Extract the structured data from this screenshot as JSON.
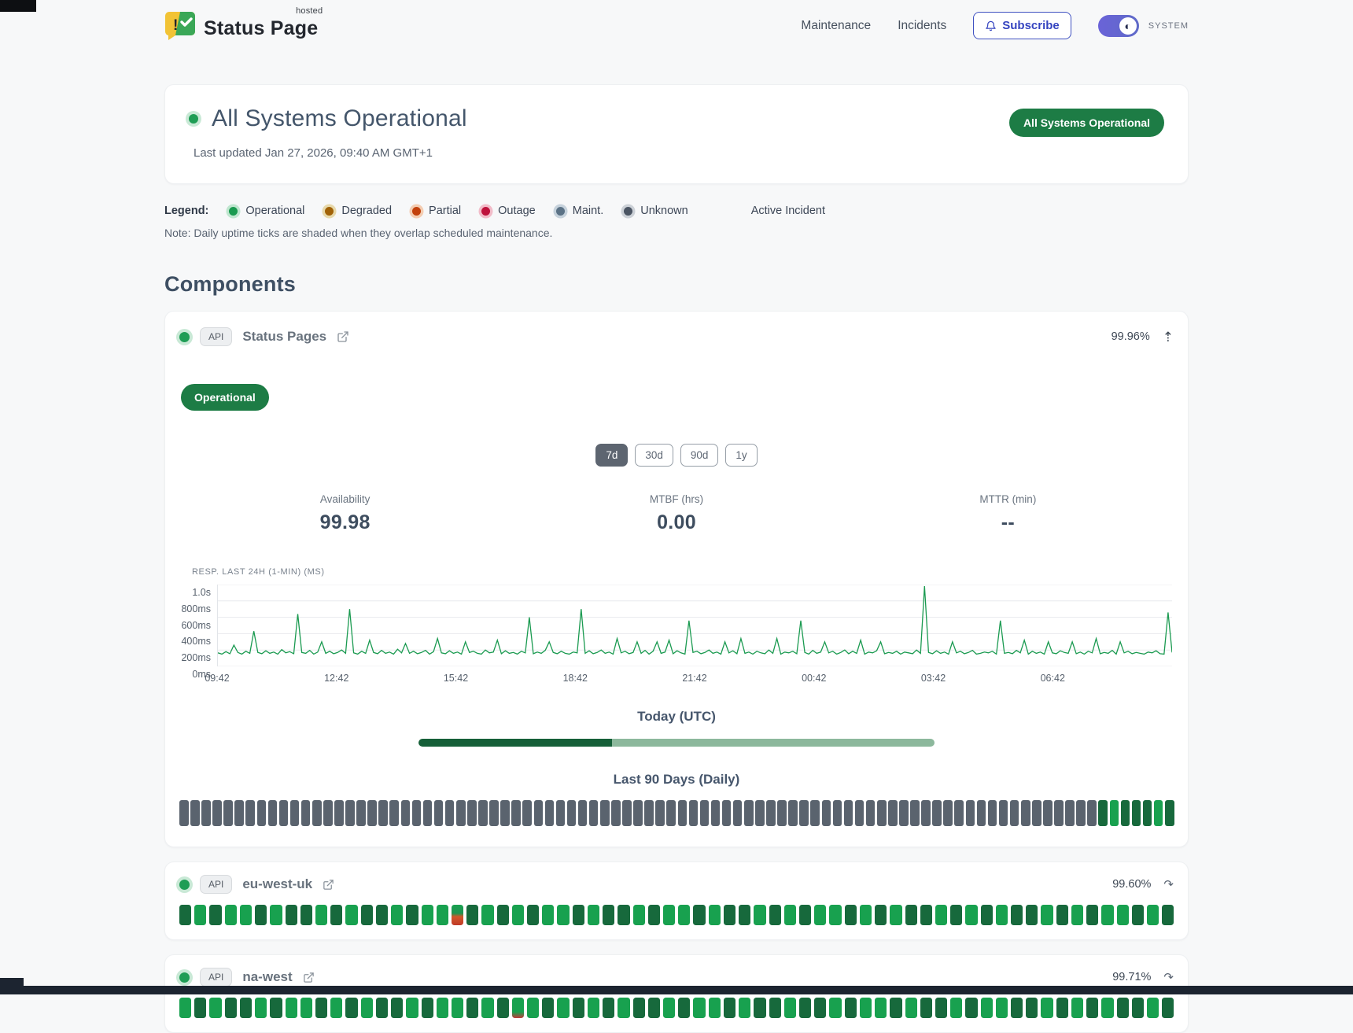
{
  "header": {
    "logo_title": "Status Page",
    "logo_sup": "hosted",
    "nav": [
      {
        "label": "Maintenance"
      },
      {
        "label": "Incidents"
      }
    ],
    "subscribe_label": "Subscribe",
    "theme_toggle_label": "SYSTEM"
  },
  "hero": {
    "title": "All Systems Operational",
    "updated": "Last updated Jan 27, 2026, 09:40 AM GMT+1",
    "badge": "All Systems Operational",
    "status_color": "#1f9d55"
  },
  "legend": {
    "label": "Legend:",
    "items": [
      {
        "label": "Operational",
        "color": "#1a9a50",
        "ring": "#bfe6cf"
      },
      {
        "label": "Degraded",
        "color": "#a16207",
        "ring": "#e7d9ab"
      },
      {
        "label": "Partial",
        "color": "#c2410c",
        "ring": "#f3cdb2"
      },
      {
        "label": "Outage",
        "color": "#be123c",
        "ring": "#f2bcc9"
      },
      {
        "label": "Maint.",
        "color": "#5b7286",
        "ring": "#c6d2dc"
      },
      {
        "label": "Unknown",
        "color": "#4b5563",
        "ring": "#ccd1d7"
      }
    ],
    "active_incident_label": "Active Incident",
    "note": "Note: Daily uptime ticks are shaded when they overlap scheduled maintenance."
  },
  "components": {
    "title": "Components",
    "main": {
      "badge": "API",
      "name": "Status Pages",
      "uptime": "99.96%",
      "collapse_icon": "⇡",
      "status_label": "Operational",
      "ranges": [
        {
          "label": "7d",
          "active": true
        },
        {
          "label": "30d",
          "active": false
        },
        {
          "label": "90d",
          "active": false
        },
        {
          "label": "1y",
          "active": false
        }
      ],
      "stats": [
        {
          "label": "Availability",
          "value": "99.98"
        },
        {
          "label": "MTBF (hrs)",
          "value": "0.00"
        },
        {
          "label": "MTTR (min)",
          "value": "--"
        }
      ],
      "today_label": "Today (UTC)",
      "today_progress_pct": 37.5,
      "history_label": "Last 90 Days (Daily)",
      "history_pattern": "nnnnnnnnnnnnnnnnnnnnnnnnnnnnnnnnnnnnnnnnnnnnnnnnnnnnnnnnnnnnnnnnnnnnnnnnnnnnnnnnnnn2122212"
    },
    "rows": [
      {
        "badge": "API",
        "name": "eu-west-uk",
        "uptime": "99.60%",
        "expand_icon": "↷",
        "ticks_pattern": "212112122121221211p21212112122121121221212112121221212122121211212 "
      },
      {
        "badge": "API",
        "name": "na-west",
        "uptime": "99.71%",
        "expand_icon": "↷",
        "ticks_pattern": "1212212112121221211212m1212121221211212212212112122121122121212212 "
      }
    ]
  },
  "chart_data": {
    "type": "line",
    "title": "RESP. LAST 24H (1-MIN) (MS)",
    "unit": "ms",
    "ylim": [
      0,
      1000
    ],
    "y_tick_labels": [
      "1.0s",
      "800ms",
      "600ms",
      "400ms",
      "200ms",
      "0ms"
    ],
    "y_tick_values": [
      1000,
      800,
      600,
      400,
      200,
      0
    ],
    "x_tick_labels": [
      "09:42",
      "12:42",
      "15:42",
      "18:42",
      "21:42",
      "00:42",
      "03:42",
      "06:42"
    ],
    "line_color": "#1a9a50",
    "grid": true,
    "samples": [
      165,
      150,
      180,
      155,
      260,
      170,
      150,
      185,
      160,
      430,
      170,
      155,
      190,
      160,
      175,
      150,
      205,
      165,
      180,
      155,
      640,
      170,
      160,
      195,
      150,
      175,
      300,
      160,
      185,
      155,
      170,
      200,
      160,
      700,
      165,
      150,
      185,
      160,
      320,
      170,
      155,
      195,
      160,
      175,
      150,
      210,
      165,
      280,
      160,
      185,
      155,
      170,
      195,
      150,
      180,
      340,
      165,
      155,
      190,
      160,
      175,
      150,
      300,
      170,
      185,
      160,
      150,
      200,
      165,
      175,
      320,
      155,
      190,
      160,
      170,
      150,
      185,
      165,
      600,
      155,
      175,
      160,
      195,
      300,
      170,
      155,
      185,
      160,
      150,
      175,
      165,
      700,
      160,
      190,
      155,
      170,
      200,
      160,
      175,
      150,
      340,
      165,
      185,
      155,
      170,
      300,
      160,
      195,
      150,
      185,
      300,
      160,
      175,
      320,
      155,
      190,
      165,
      150,
      560,
      170,
      185,
      155,
      170,
      200,
      160,
      175,
      150,
      300,
      165,
      190,
      155,
      340,
      160,
      175,
      150,
      185,
      165,
      155,
      200,
      160,
      340,
      150,
      175,
      165,
      185,
      155,
      560,
      170,
      150,
      195,
      160,
      175,
      300,
      165,
      185,
      150,
      170,
      200,
      155,
      185,
      160,
      320,
      150,
      175,
      165,
      190,
      300,
      155,
      170,
      160,
      185,
      150,
      175,
      165,
      155,
      200,
      160,
      980,
      170,
      155,
      190,
      160,
      175,
      150,
      300,
      165,
      185,
      155,
      170,
      195,
      150,
      160,
      175,
      165,
      185,
      150,
      560,
      160,
      170,
      155,
      195,
      165,
      320,
      150,
      185,
      160,
      175,
      150,
      300,
      165,
      155,
      190,
      170,
      160,
      300,
      155,
      175,
      150,
      185,
      165,
      340,
      155,
      170,
      160,
      195,
      150,
      300,
      165,
      185,
      155,
      170,
      160,
      150,
      175,
      165,
      190,
      155,
      150,
      660,
      170
    ]
  }
}
